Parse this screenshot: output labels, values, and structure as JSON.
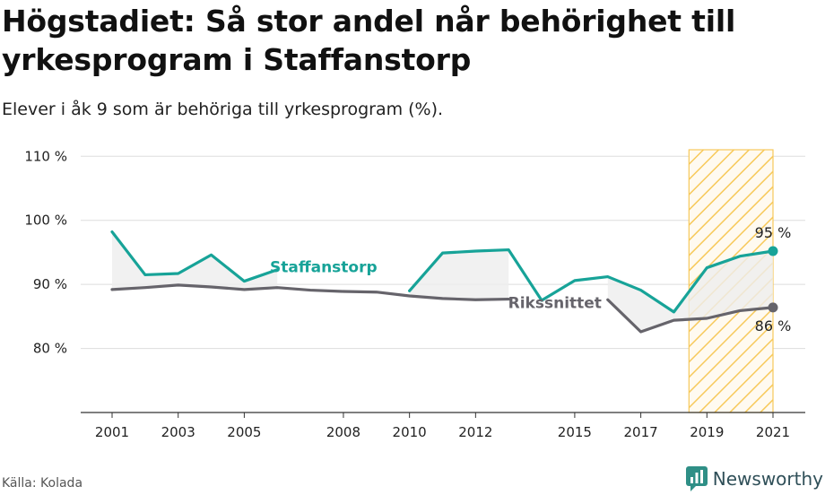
{
  "title": "Högstadiet: Så stor andel når behörighet till yrkesprogram i Staffanstorp",
  "subtitle": "Elever i åk 9 som är behöriga till yrkesprogram (%).",
  "source": "Källa: Kolada",
  "brand": "Newsworthy",
  "colors": {
    "staffanstorp": "#17a398",
    "riket": "#66646b",
    "highlight": "#f7c95a",
    "grid": "#dddddd",
    "area": "#eeeeee"
  },
  "chart_data": {
    "type": "line",
    "x": [
      2001,
      2002,
      2003,
      2004,
      2005,
      2006,
      2007,
      2008,
      2009,
      2010,
      2011,
      2012,
      2013,
      2014,
      2015,
      2016,
      2017,
      2018,
      2019,
      2020,
      2021
    ],
    "xticks": [
      2001,
      2003,
      2005,
      2008,
      2010,
      2012,
      2015,
      2017,
      2019,
      2021
    ],
    "ylim": [
      70,
      112
    ],
    "yticks": [
      80,
      90,
      100,
      110
    ],
    "ytick_suffix": " %",
    "highlight_range": [
      2019,
      2021
    ],
    "series": [
      {
        "name": "Staffanstorp",
        "values": [
          98.2,
          91.5,
          91.7,
          94.6,
          90.5,
          92.3,
          null,
          null,
          null,
          89.0,
          94.9,
          95.2,
          95.4,
          87.5,
          90.6,
          91.2,
          89.1,
          85.7,
          92.6,
          94.4,
          95.2
        ]
      },
      {
        "name": "Rikssnittet",
        "values": [
          89.2,
          89.5,
          89.9,
          89.6,
          89.2,
          89.5,
          89.1,
          88.9,
          88.8,
          88.2,
          87.8,
          87.6,
          87.7,
          null,
          null,
          87.6,
          82.6,
          84.4,
          84.7,
          85.9,
          86.4
        ]
      }
    ],
    "end_labels": {
      "staffanstorp": "95 %",
      "riket": "86 %"
    }
  }
}
